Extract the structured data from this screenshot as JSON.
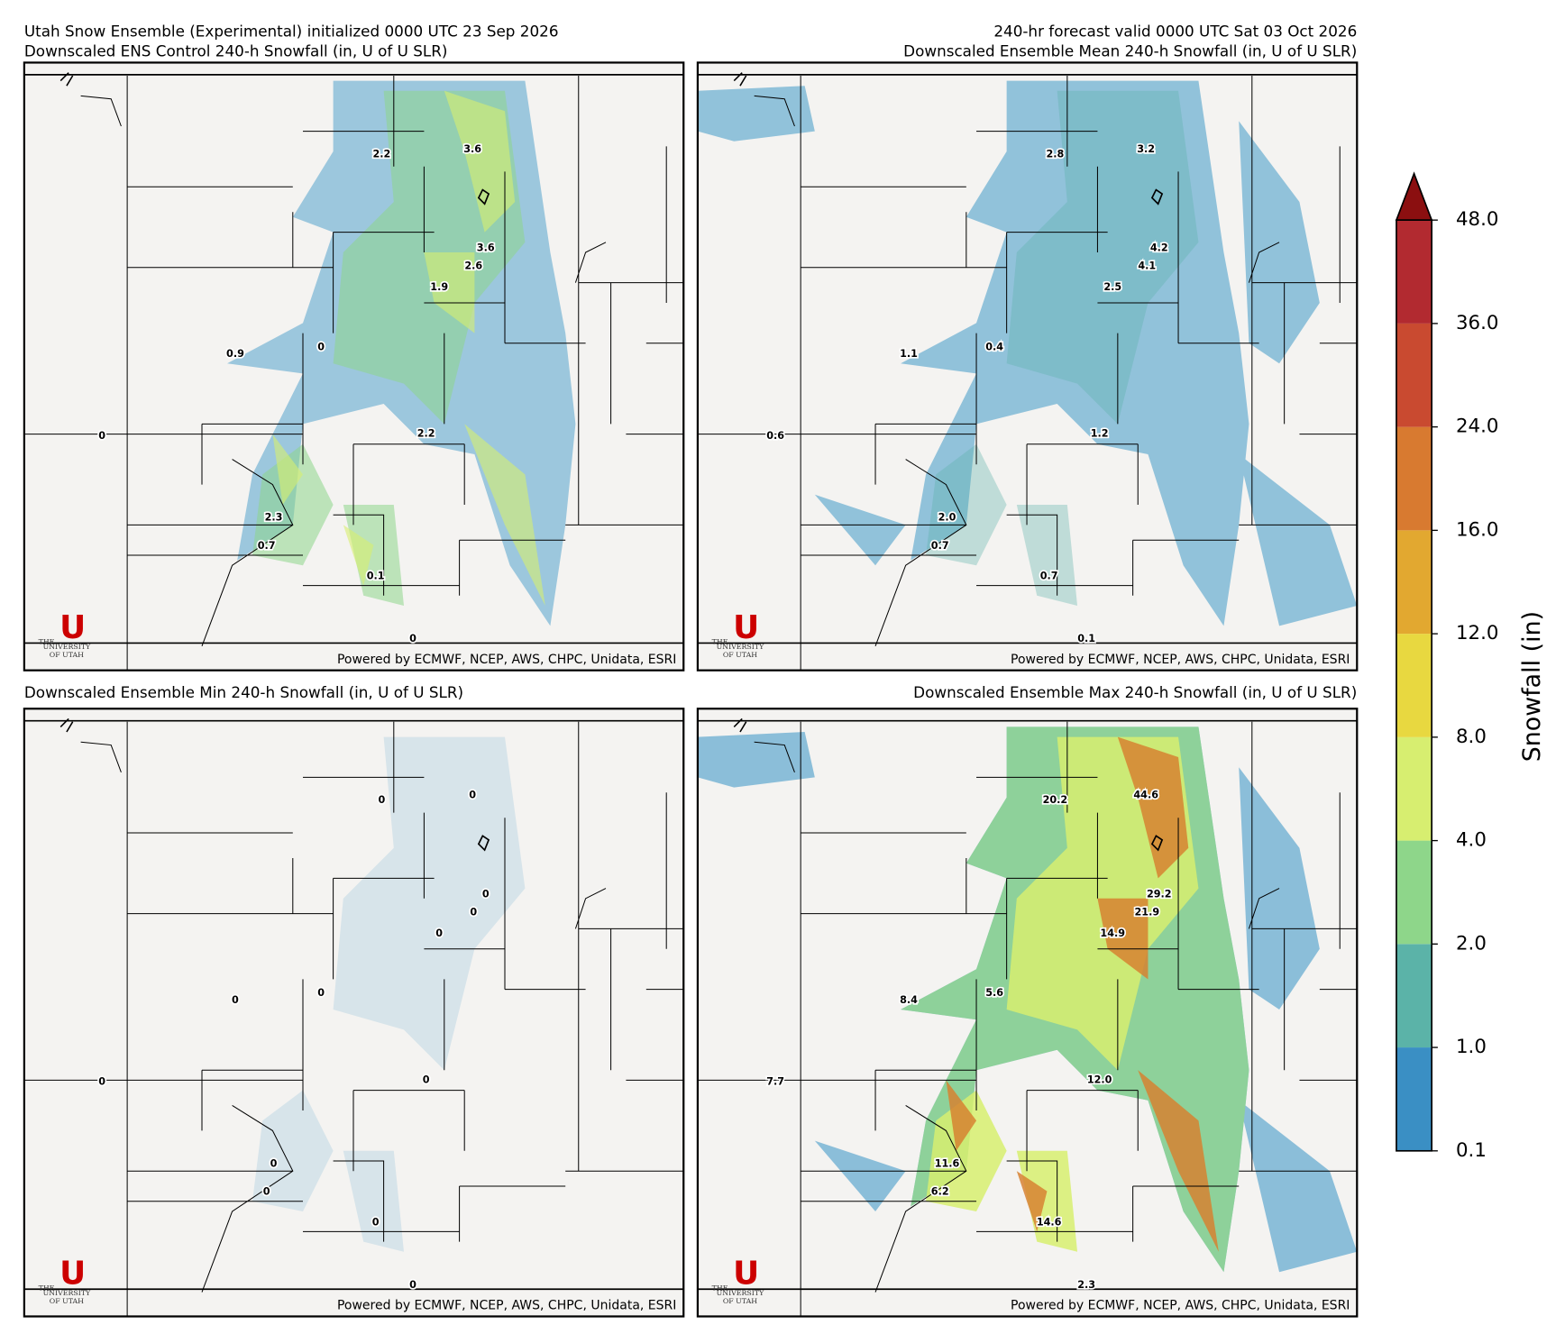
{
  "header": {
    "left_title": "Utah Snow Ensemble (Experimental) initialized 0000 UTC 23 Sep 2026",
    "right_title": "240-hr forecast valid 0000 UTC Sat 03 Oct 2026"
  },
  "panels": [
    {
      "title": "Downscaled ENS Control 240-h Snowfall (in, U of U SLR)",
      "point_labels": [
        "2.2",
        "3.6",
        "3.6",
        "2.6",
        "1.9",
        "0.9",
        "0",
        "0",
        "2.2",
        "2.3",
        "0.7",
        "0.1",
        "0"
      ]
    },
    {
      "title": "Downscaled Ensemble Mean 240-h Snowfall (in, U of U SLR)",
      "point_labels": [
        "2.8",
        "3.2",
        "4.2",
        "4.1",
        "2.5",
        "1.1",
        "0.4",
        "0.6",
        "1.2",
        "2.0",
        "0.7",
        "0.7",
        "0.1"
      ]
    },
    {
      "title": "Downscaled Ensemble Min 240-h Snowfall (in, U of U SLR)",
      "point_labels": [
        "0",
        "0",
        "0",
        "0",
        "0",
        "0",
        "0",
        "0",
        "0",
        "0",
        "0",
        "0",
        "0"
      ]
    },
    {
      "title": "Downscaled Ensemble Max 240-h Snowfall (in, U of U SLR)",
      "point_labels": [
        "20.2",
        "44.6",
        "29.2",
        "21.9",
        "14.9",
        "8.4",
        "5.6",
        "7.7",
        "12.0",
        "11.6",
        "6.2",
        "14.6",
        "2.3"
      ]
    }
  ],
  "credit": "Powered by ECMWF, NCEP, AWS, CHPC, Unidata, ESRI",
  "logo": {
    "letter": "U",
    "line1": "THE",
    "line2": "UNIVERSITY",
    "line3": "OF UTAH"
  },
  "colorbar": {
    "label": "Snowfall (in)",
    "ticks": [
      0.1,
      {
        "value": 1,
        "label": "1.0"
      },
      {
        "value": 2,
        "label": "2.0"
      },
      {
        "value": 4,
        "label": "4.0"
      },
      {
        "value": 8,
        "label": "8.0"
      },
      {
        "value": 12,
        "label": "12.0"
      },
      {
        "value": 16,
        "label": "16.0"
      },
      {
        "value": 24,
        "label": "24.0"
      },
      {
        "value": 36,
        "label": "36.0"
      },
      {
        "value": 48,
        "label": "48.0"
      }
    ],
    "colors": [
      "#3a8fc4",
      "#5bb3a8",
      "#8ed68a",
      "#d7ee70",
      "#e8d840",
      "#e2a830",
      "#d87a30",
      "#c94a30",
      "#b22a30"
    ],
    "extend_color": "#8b0f10"
  }
}
